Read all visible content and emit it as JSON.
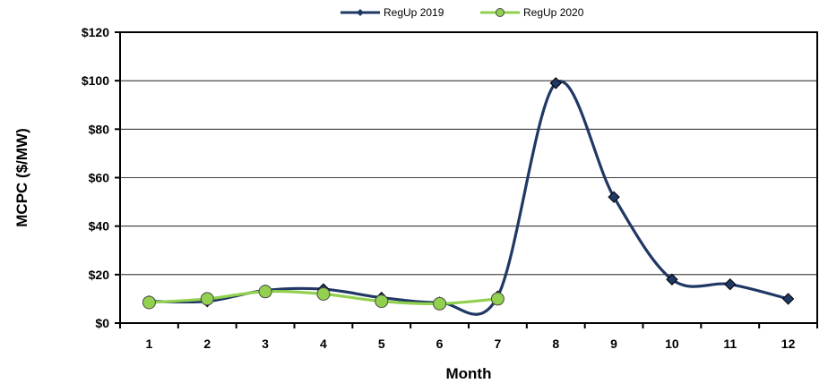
{
  "chart_data": {
    "type": "line",
    "title": "",
    "xlabel": "Month",
    "ylabel": "MCPC ($/MW)",
    "x": [
      1,
      2,
      3,
      4,
      5,
      6,
      7,
      8,
      9,
      10,
      11,
      12
    ],
    "xticklabels": [
      "1",
      "2",
      "3",
      "4",
      "5",
      "6",
      "7",
      "8",
      "9",
      "10",
      "11",
      "12"
    ],
    "ylim": [
      0,
      120
    ],
    "yticks": [
      0,
      20,
      40,
      60,
      80,
      100,
      120
    ],
    "yticklabels": [
      "$0",
      "$20",
      "$40",
      "$60",
      "$80",
      "$100",
      "$120"
    ],
    "grid": "horizontal",
    "legend_position": "top-center",
    "series": [
      {
        "name": "RegUp 2019",
        "color": "#1f3864",
        "marker": "diamond",
        "smooth": true,
        "values": [
          9,
          9,
          13.5,
          14,
          10.5,
          8.5,
          11,
          99,
          52,
          18,
          16,
          10
        ]
      },
      {
        "name": "RegUp 2020",
        "color": "#92d050",
        "marker": "circle",
        "smooth": true,
        "values": [
          8.5,
          10,
          13,
          12,
          9,
          8,
          10,
          null,
          null,
          null,
          null,
          null
        ]
      }
    ]
  }
}
